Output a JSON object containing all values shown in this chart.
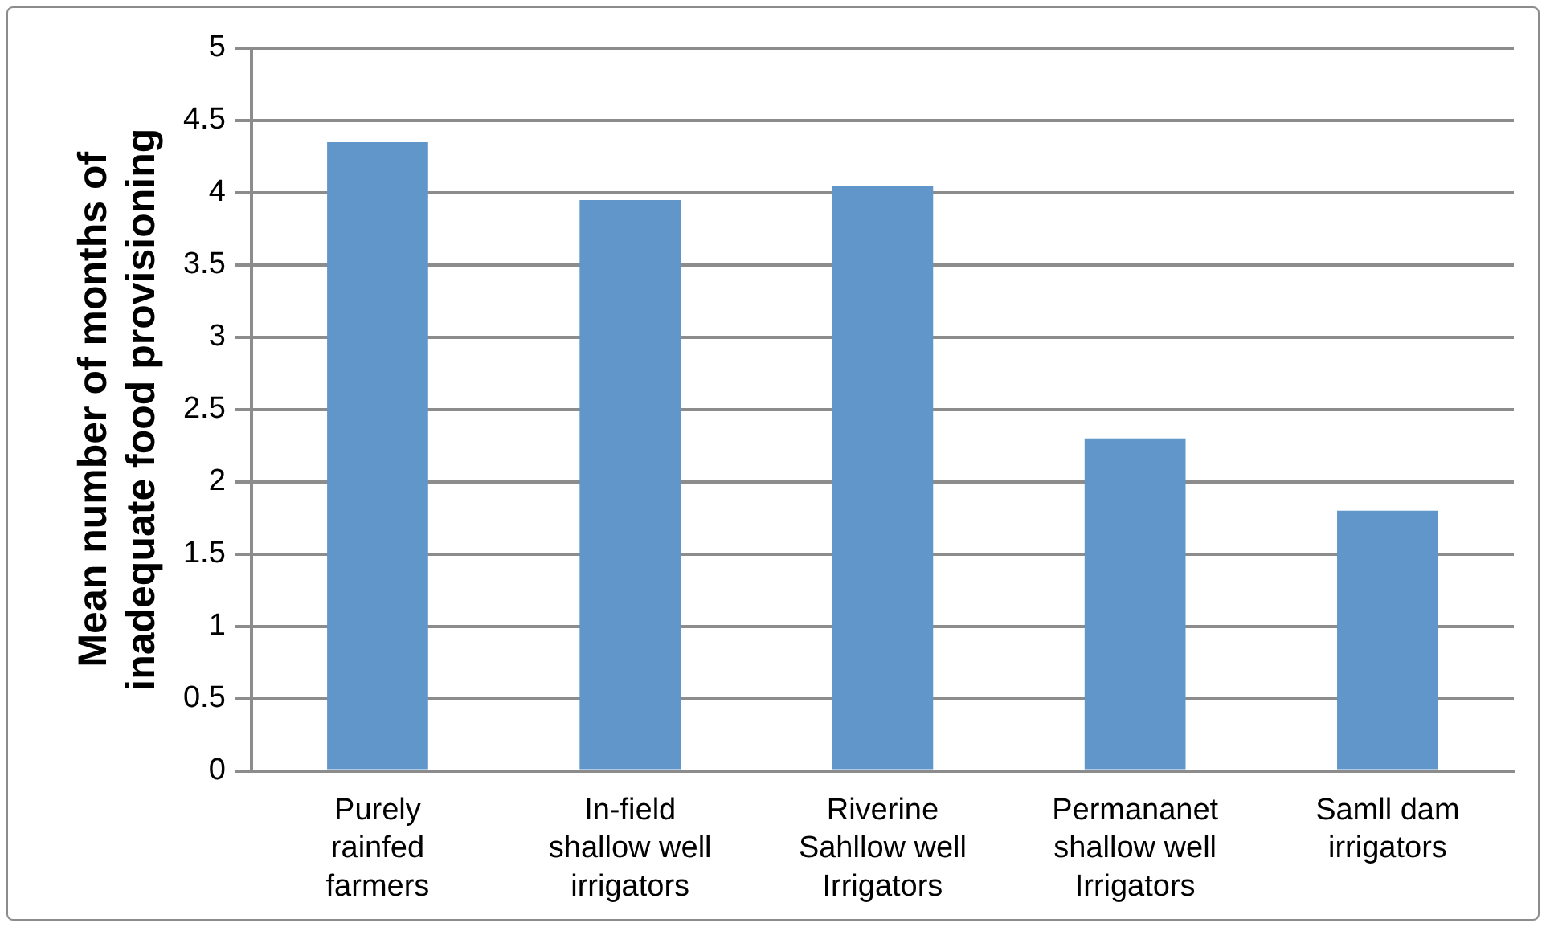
{
  "chart_data": {
    "type": "bar",
    "ylabel": "Mean number of months of inadequate food provisioning",
    "categories": [
      "Purely rainfed farmers",
      "In-field shallow well irrigators",
      "Riverine Sahllow well Irrigators",
      "Permananet shallow well Irrigators",
      "Samll dam irrigators"
    ],
    "values": [
      4.35,
      3.95,
      4.05,
      2.3,
      1.8
    ],
    "color": "#6096c9",
    "ylim": [
      0,
      5
    ],
    "yticks": [
      0,
      0.5,
      1,
      1.5,
      2,
      2.5,
      3,
      3.5,
      4,
      4.5,
      5
    ],
    "grid": "y"
  }
}
